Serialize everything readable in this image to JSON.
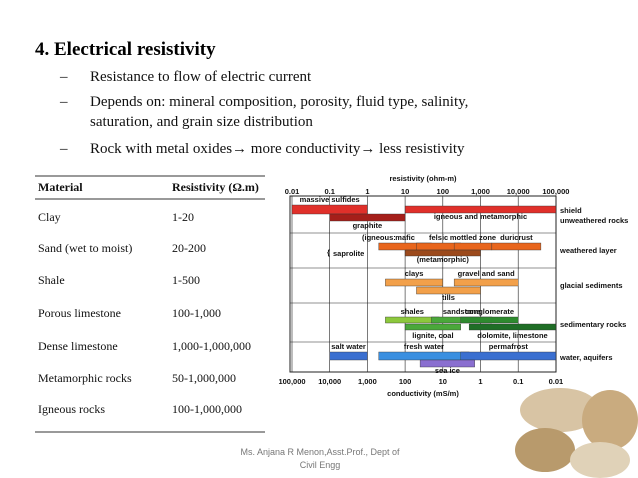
{
  "title": "4. Electrical resistivity",
  "bullets": [
    "Resistance to flow of electric current",
    "Depends on: mineral composition, porosity, fluid type, salinity, saturation, and grain size distribution",
    "Rock with metal oxides→ more conductivity→ less resistivity"
  ],
  "table": {
    "header": [
      "Material",
      "Resistivity (Ω.m)"
    ],
    "rows": [
      [
        "Clay",
        "1-20"
      ],
      [
        "Sand (wet to moist)",
        "20-200"
      ],
      [
        "Shale",
        "1-500"
      ],
      [
        "Porous limestone",
        "100-1,000"
      ],
      [
        "Dense limestone",
        "1,000-1,000,000"
      ],
      [
        "Metamorphic rocks",
        "50-1,000,000"
      ],
      [
        "Igneous rocks",
        "100-1,000,000"
      ]
    ]
  },
  "figure": {
    "top_label": "resistivity (ohm-m)",
    "top_ticks": [
      {
        "value": 0.01,
        "label": "0.01"
      },
      {
        "value": 0.1,
        "label": "0.1"
      },
      1,
      10,
      100,
      {
        "value": 1000,
        "label": "1,000"
      },
      {
        "value": 10000,
        "label": "10,000"
      },
      {
        "value": 100000,
        "label": "100,000"
      }
    ],
    "bottom_label": "conductivity (mS/m)",
    "bottom_ticks": [
      {
        "value": 100000,
        "label": "100,000"
      },
      {
        "value": 10000,
        "label": "10,000"
      },
      {
        "value": 1000,
        "label": "1,000"
      },
      100,
      10,
      1,
      {
        "value": 0.1,
        "label": "0.1"
      },
      {
        "value": 0.01,
        "label": "0.01"
      }
    ],
    "groups": [
      {
        "label": [
          "shield",
          "unweathered rocks"
        ],
        "bars": [
          {
            "label": "massive sulfides",
            "low": 0.01,
            "high": 1,
            "color": "#e0302a"
          },
          {
            "label": "graphite",
            "low": 0.1,
            "high": 10,
            "color": "#a51f1a"
          },
          {
            "label": "igneous and metamorphic",
            "low": 10,
            "high": 100000,
            "color": "#e0302a"
          }
        ]
      },
      {
        "label": [
          "weathered layer"
        ],
        "notes": [
          "saprolite",
          "(igneous:"
        ],
        "bars": [
          {
            "label": "mafic",
            "low": 2,
            "high": 50,
            "color": "#e8651c"
          },
          {
            "label": "felsic",
            "low": 20,
            "high": 300,
            "color": "#e8651c"
          },
          {
            "label": "mottled zone",
            "low": 200,
            "high": 2000,
            "color": "#e8651c"
          },
          {
            "label": "duricrust",
            "low": 2000,
            "high": 40000,
            "color": "#e8651c"
          },
          {
            "label": "(metamorphic)",
            "low": 10,
            "high": 1000,
            "color": "#9c4a1c"
          }
        ]
      },
      {
        "label": [
          "glacial sediments"
        ],
        "bars": [
          {
            "label": "clays",
            "low": 3,
            "high": 100,
            "color": "#f2a04a"
          },
          {
            "label": "gravel and sand",
            "low": 200,
            "high": 10000,
            "color": "#f2a04a"
          },
          {
            "label": "tills",
            "low": 20,
            "high": 1000,
            "color": "#f2a04a"
          }
        ]
      },
      {
        "label": [
          "sedimentary rocks"
        ],
        "bars": [
          {
            "label": "shales",
            "low": 3,
            "high": 80,
            "color": "#8cc83c"
          },
          {
            "label": "sandstone",
            "low": 50,
            "high": 2000,
            "color": "#4aa83a"
          },
          {
            "label": "conglomerate",
            "low": 300,
            "high": 10000,
            "color": "#2e8a2e"
          },
          {
            "label": "lignite, coal",
            "low": 10,
            "high": 300,
            "color": "#4aa83a"
          },
          {
            "label": "dolomite, limestone",
            "low": 500,
            "high": 100000,
            "color": "#1f6e26"
          }
        ]
      },
      {
        "label": [
          "water, aquifers"
        ],
        "bars": [
          {
            "label": "salt water",
            "low": 0.1,
            "high": 1,
            "color": "#3a6fd0"
          },
          {
            "label": "fresh water",
            "low": 2,
            "high": 500,
            "color": "#3a8fe0"
          },
          {
            "label": "permafrost",
            "low": 300,
            "high": 100000,
            "color": "#3a6fd0"
          },
          {
            "label": "sea ice",
            "low": 25,
            "high": 700,
            "color": "#8a6fd0"
          }
        ]
      }
    ]
  },
  "footer": [
    "Ms. Anjana R Menon,Asst.Prof., Dept of",
    "Civil Engg"
  ]
}
